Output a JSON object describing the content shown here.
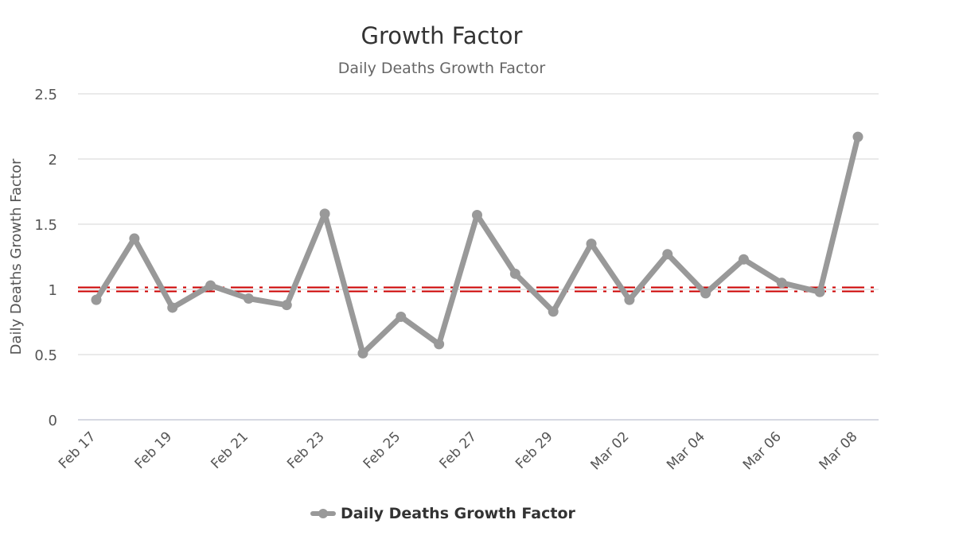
{
  "chart_data": {
    "type": "line",
    "title": "Growth Factor",
    "subtitle": "Daily Deaths Growth Factor",
    "ylabel": "Daily Deaths Growth Factor",
    "xlabel": "",
    "ylim": [
      0,
      2.5
    ],
    "yticks": [
      "0",
      "0.5",
      "1",
      "1.5",
      "2",
      "2.5"
    ],
    "x": [
      "Feb 17",
      "Feb 18",
      "Feb 19",
      "Feb 20",
      "Feb 21",
      "Feb 22",
      "Feb 23",
      "Feb 24",
      "Feb 25",
      "Feb 26",
      "Feb 27",
      "Feb 28",
      "Feb 29",
      "Mar 01",
      "Mar 02",
      "Mar 03",
      "Mar 04",
      "Mar 05",
      "Mar 06",
      "Mar 07",
      "Mar 08"
    ],
    "xtick_labels": [
      "Feb 17",
      "Feb 19",
      "Feb 21",
      "Feb 23",
      "Feb 25",
      "Feb 27",
      "Feb 29",
      "Mar 02",
      "Mar 04",
      "Mar 06",
      "Mar 08"
    ],
    "series": [
      {
        "name": "Daily Deaths Growth Factor",
        "color": "#999999",
        "values": [
          0.92,
          1.39,
          0.86,
          1.03,
          0.93,
          0.88,
          1.58,
          0.51,
          0.79,
          0.58,
          1.57,
          1.12,
          0.83,
          1.35,
          0.92,
          1.27,
          0.97,
          1.23,
          1.05,
          0.98,
          2.17
        ]
      }
    ],
    "reference_line": {
      "value": 1,
      "color": "#cc0000",
      "style": "dash-dot"
    },
    "grid": true,
    "legend": "bottom-center"
  }
}
